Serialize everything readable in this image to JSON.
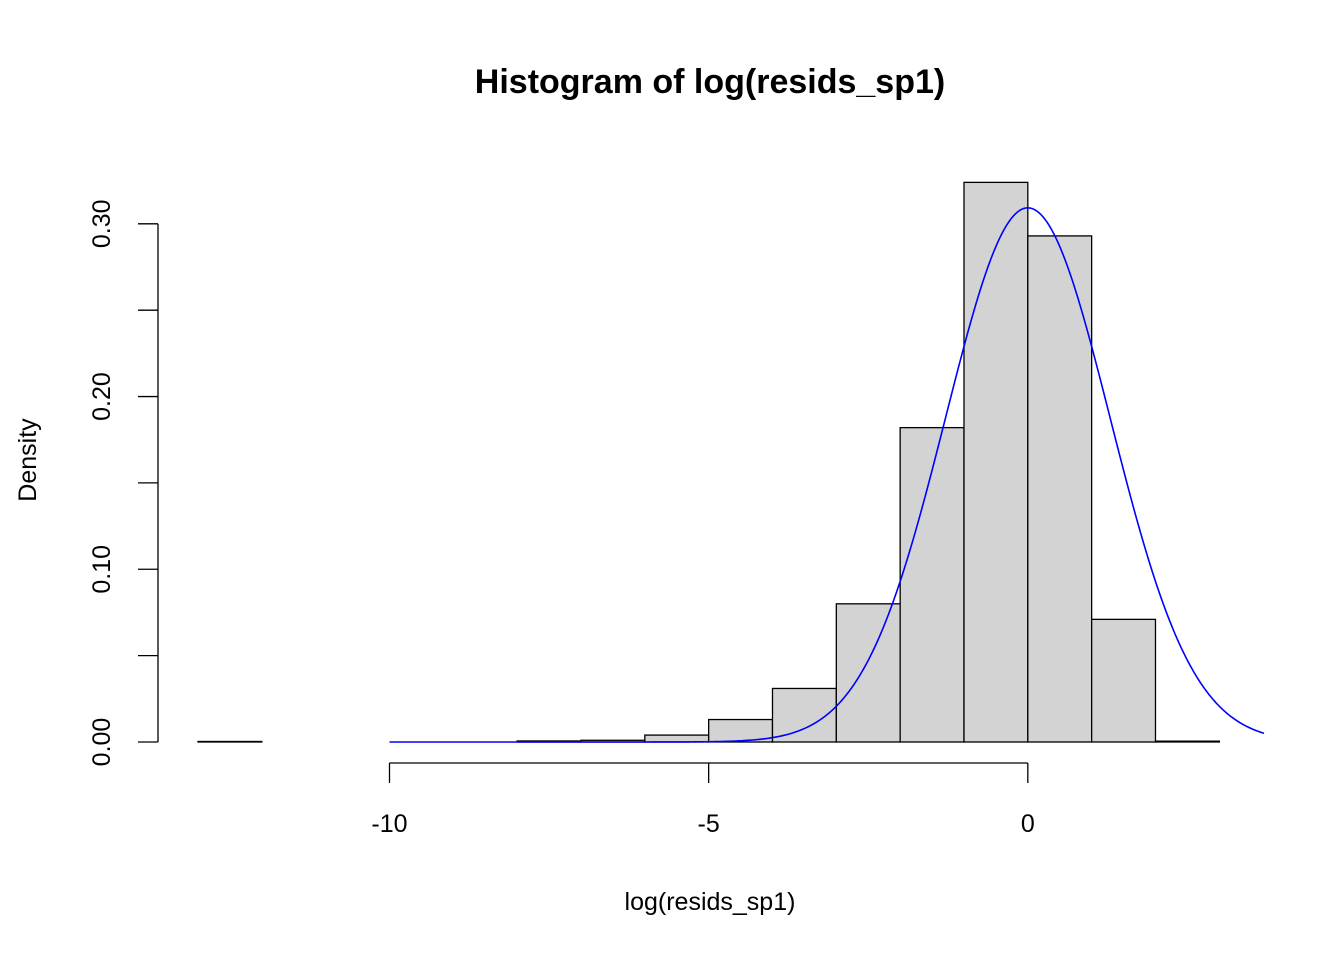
{
  "chart_data": {
    "type": "bar",
    "subtype": "histogram",
    "title": "Histogram of log(resids_sp1)",
    "xlabel": "log(resids_sp1)",
    "ylabel": "Density",
    "xlim": [
      -13,
      3.7
    ],
    "ylim": [
      0,
      0.33
    ],
    "x_ticks": [
      -10,
      -5,
      0
    ],
    "x_tick_labels": [
      "-10",
      "-5",
      "0"
    ],
    "y_ticks": [
      0.0,
      0.05,
      0.1,
      0.15,
      0.2,
      0.25,
      0.3
    ],
    "y_tick_labels": [
      "0.00",
      "",
      "0.10",
      "",
      "0.20",
      "",
      "0.30"
    ],
    "bins": [
      {
        "start": -13,
        "end": -12,
        "density": 0.0003
      },
      {
        "start": -12,
        "end": -11,
        "density": 0.0
      },
      {
        "start": -11,
        "end": -10,
        "density": 0.0
      },
      {
        "start": -10,
        "end": -9,
        "density": 0.0
      },
      {
        "start": -9,
        "end": -8,
        "density": 0.0
      },
      {
        "start": -8,
        "end": -7,
        "density": 0.0006
      },
      {
        "start": -7,
        "end": -6,
        "density": 0.001
      },
      {
        "start": -6,
        "end": -5,
        "density": 0.004
      },
      {
        "start": -5,
        "end": -4,
        "density": 0.013
      },
      {
        "start": -4,
        "end": -3,
        "density": 0.031
      },
      {
        "start": -3,
        "end": -2,
        "density": 0.08
      },
      {
        "start": -2,
        "end": -1,
        "density": 0.182
      },
      {
        "start": -1,
        "end": 0,
        "density": 0.324
      },
      {
        "start": 0,
        "end": 1,
        "density": 0.293
      },
      {
        "start": 1,
        "end": 2,
        "density": 0.071
      },
      {
        "start": 2,
        "end": 3,
        "density": 0.0005
      }
    ],
    "bar_fill": "#d3d3d3",
    "bar_border": "#000000",
    "curve": {
      "type": "normal-density",
      "mean": 0.0,
      "sd": 1.29,
      "x_from": -10,
      "x_to": 3.7,
      "color": "#0000ff"
    },
    "grid": false,
    "legend": "none"
  }
}
